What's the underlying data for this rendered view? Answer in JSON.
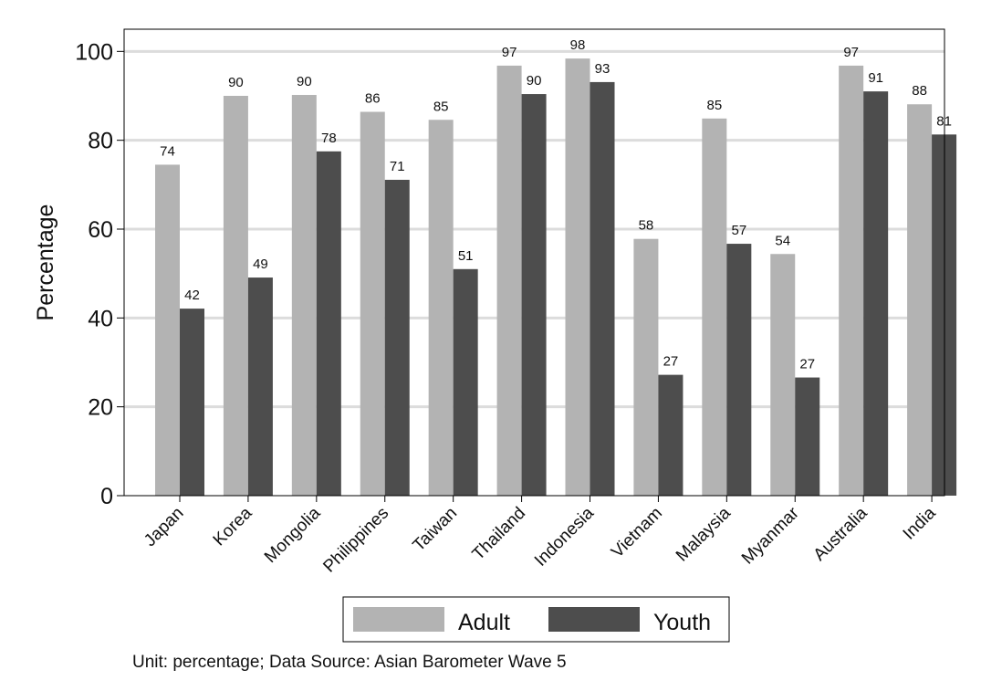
{
  "chart_data": {
    "type": "bar",
    "ylabel": "Percentage",
    "xlabel": "",
    "ylim": [
      0,
      105
    ],
    "yticks": [
      0,
      20,
      40,
      60,
      80,
      100
    ],
    "grid": true,
    "legend_position": "bottom",
    "categories": [
      "Japan",
      "Korea",
      "Mongolia",
      "Philippines",
      "Taiwan",
      "Thailand",
      "Indonesia",
      "Vietnam",
      "Malaysia",
      "Myanmar",
      "Australia",
      "India"
    ],
    "series": [
      {
        "name": "Adult",
        "color": "#b3b3b3",
        "values": [
          74.5,
          90,
          90.2,
          86.4,
          84.6,
          96.8,
          98.4,
          57.8,
          84.9,
          54.4,
          96.8,
          88.1
        ],
        "labels": [
          "74",
          "90",
          "90",
          "86",
          "85",
          "97",
          "98",
          "58",
          "85",
          "54",
          "97",
          "88"
        ]
      },
      {
        "name": "Youth",
        "color": "#4d4d4d",
        "values": [
          42.1,
          49.1,
          77.5,
          71.1,
          51,
          90.4,
          93.1,
          27.2,
          56.7,
          26.6,
          91,
          81.3
        ],
        "labels": [
          "42",
          "49",
          "78",
          "71",
          "51",
          "90",
          "93",
          "27",
          "57",
          "27",
          "91",
          "81"
        ]
      }
    ]
  },
  "note": "Unit: percentage; Data Source: Asian Barometer Wave 5"
}
